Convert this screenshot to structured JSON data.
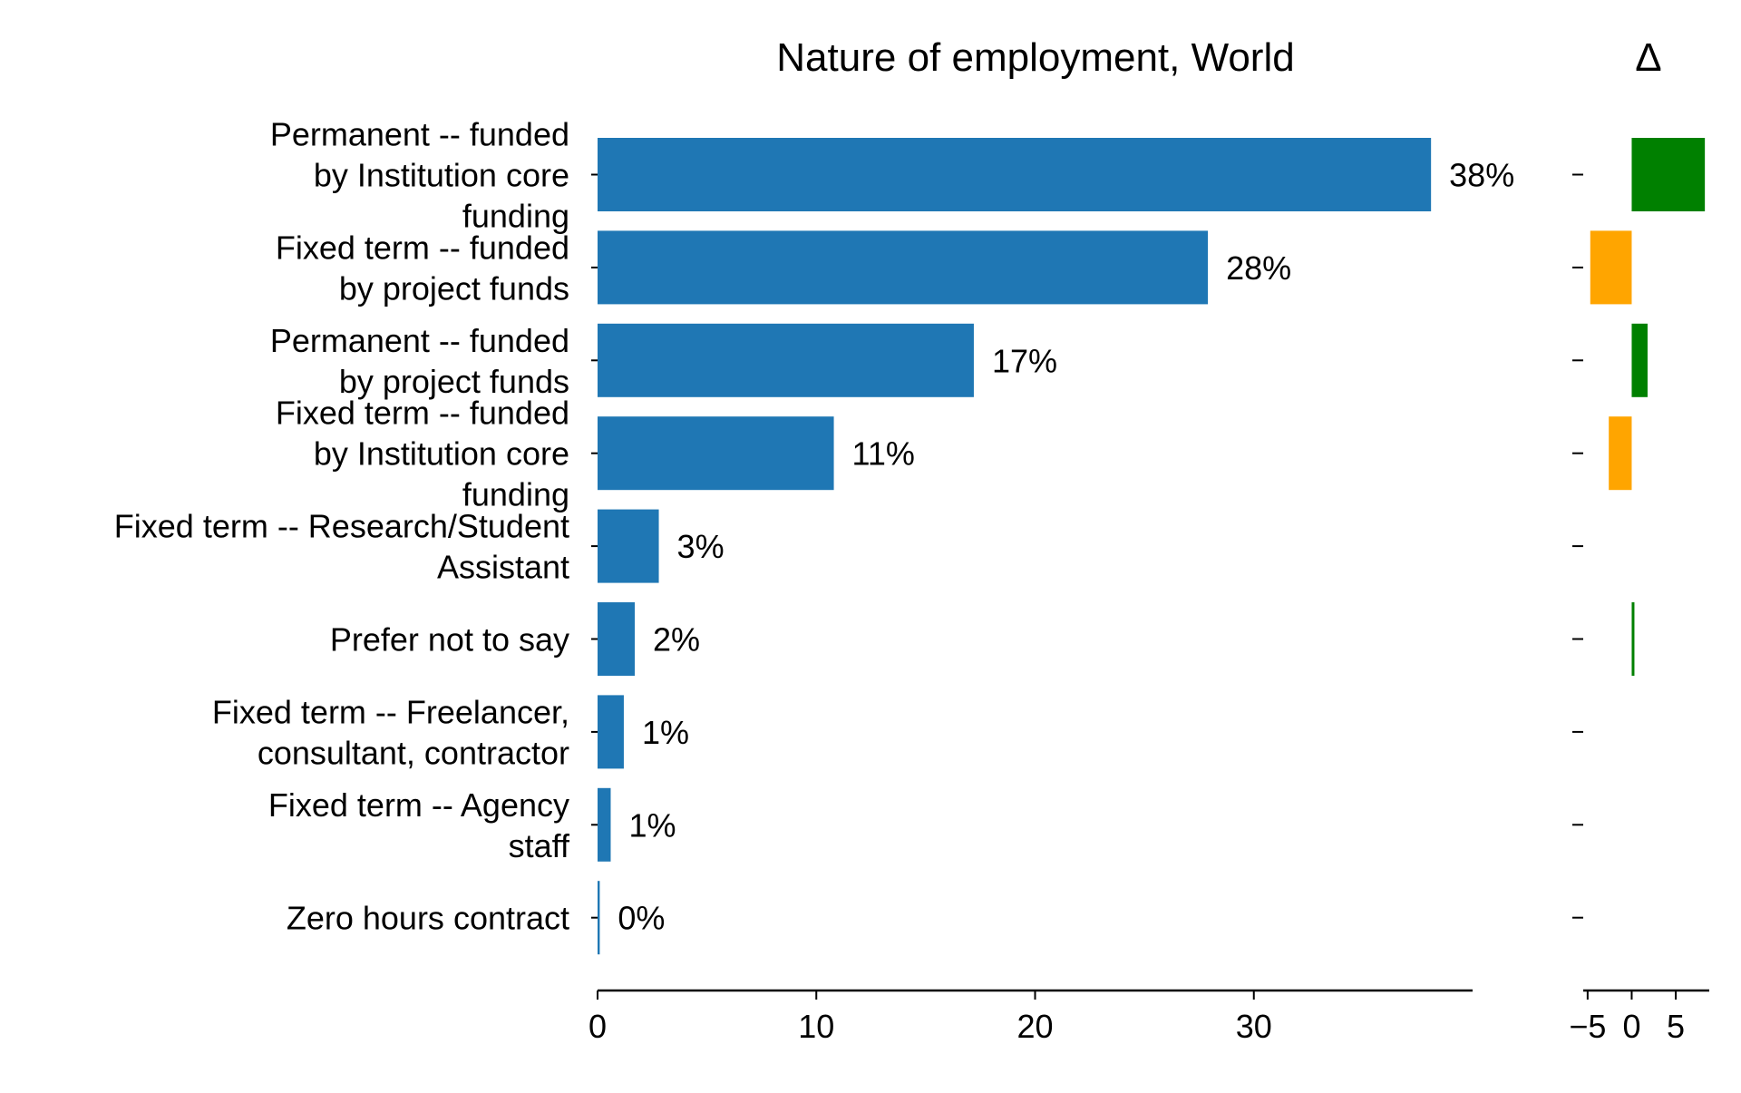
{
  "chart_data": [
    {
      "type": "bar",
      "orientation": "horizontal",
      "title": "Nature of employment, World",
      "categories": [
        "Permanent -- funded by Institution core funding",
        "Fixed term -- funded by project funds",
        "Permanent -- funded by project funds",
        "Fixed term -- funded by Institution core funding",
        "Fixed term -- Research/Student Assistant",
        "Prefer not to say",
        "Fixed term -- Freelancer, consultant, contractor",
        "Fixed term -- Agency staff",
        "Zero hours contract"
      ],
      "category_lines": [
        [
          "Permanent -- funded",
          "by Institution core",
          "funding"
        ],
        [
          "Fixed term -- funded",
          "by project funds"
        ],
        [
          "Permanent -- funded",
          "by project funds"
        ],
        [
          "Fixed term -- funded",
          "by Institution core",
          "funding"
        ],
        [
          "Fixed term -- Research/Student",
          "Assistant"
        ],
        [
          "Prefer not to say"
        ],
        [
          "Fixed term -- Freelancer,",
          "consultant, contractor"
        ],
        [
          "Fixed term -- Agency",
          "staff"
        ],
        [
          "Zero hours contract"
        ]
      ],
      "values": [
        38.1,
        27.9,
        17.2,
        10.8,
        2.8,
        1.7,
        1.2,
        0.6,
        0.1
      ],
      "data_labels": [
        "38%",
        "28%",
        "17%",
        "11%",
        "3%",
        "2%",
        "1%",
        "1%",
        "0%"
      ],
      "xlim": [
        0,
        40
      ],
      "xticks": [
        0,
        10,
        20,
        30
      ],
      "xtick_labels": [
        "0",
        "10",
        "20",
        "30"
      ],
      "bar_color": "#1f77b4",
      "grid": false,
      "xlabel": "",
      "ylabel": ""
    },
    {
      "type": "bar",
      "orientation": "horizontal",
      "title": "Δ",
      "categories": [
        "Permanent -- funded by Institution core funding",
        "Fixed term -- funded by project funds",
        "Permanent -- funded by project funds",
        "Fixed term -- funded by Institution core funding",
        "Fixed term -- Research/Student Assistant",
        "Prefer not to say",
        "Fixed term -- Freelancer, consultant, contractor",
        "Fixed term -- Agency staff",
        "Zero hours contract"
      ],
      "values": [
        8.3,
        -4.7,
        1.8,
        -2.6,
        0,
        0.3,
        0,
        0,
        0
      ],
      "xlim": [
        -5.5,
        8.8
      ],
      "xticks": [
        -5,
        0,
        5
      ],
      "xtick_labels": [
        "−5",
        "0",
        "5"
      ],
      "positive_color": "#008000",
      "negative_color": "#ffa500",
      "grid": false
    }
  ]
}
